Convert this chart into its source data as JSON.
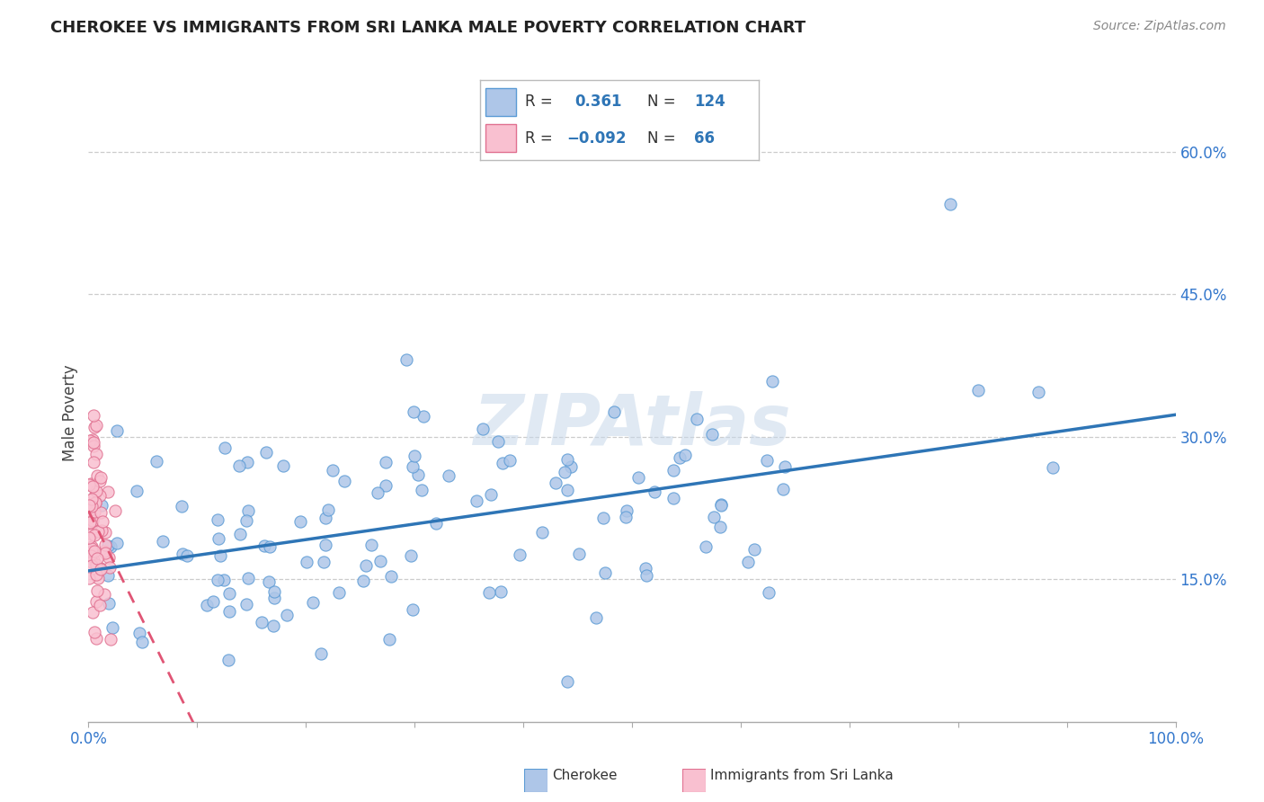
{
  "title": "CHEROKEE VS IMMIGRANTS FROM SRI LANKA MALE POVERTY CORRELATION CHART",
  "source": "Source: ZipAtlas.com",
  "ylabel": "Male Poverty",
  "xlabel": "",
  "R_cherokee": 0.361,
  "N_cherokee": 124,
  "R_sri_lanka": -0.092,
  "N_sri_lanka": 66,
  "cherokee_color": "#aec6e8",
  "cherokee_edge": "#5b9bd5",
  "sri_lanka_color": "#f9c0d0",
  "sri_lanka_edge": "#e07090",
  "trend_cherokee_color": "#2e75b6",
  "trend_sri_lanka_color": "#e05575",
  "watermark": "ZIPAtlas",
  "xlim": [
    0.0,
    1.0
  ],
  "ylim": [
    0.0,
    0.65
  ],
  "yticks": [
    0.15,
    0.3,
    0.45,
    0.6
  ],
  "ytick_labels": [
    "15.0%",
    "30.0%",
    "45.0%",
    "60.0%"
  ],
  "xticks": [
    0.0,
    0.1,
    0.2,
    0.3,
    0.4,
    0.5,
    0.6,
    0.7,
    0.8,
    0.9,
    1.0
  ],
  "xtick_labels_show": [
    "0.0%",
    "",
    "",
    "",
    "",
    "",
    "",
    "",
    "",
    "",
    "100.0%"
  ],
  "background_color": "#ffffff",
  "plot_bg_color": "#ffffff",
  "grid_color": "#cccccc",
  "border_color": "#aaaaaa",
  "tick_color_x": "#3377cc",
  "tick_color_y": "#3377cc"
}
